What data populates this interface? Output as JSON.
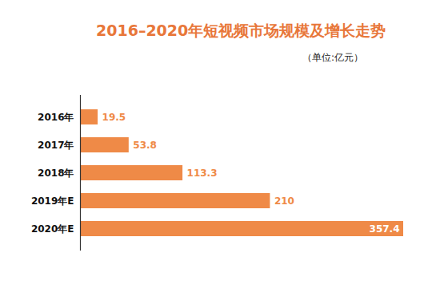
{
  "chart_data": {
    "type": "bar",
    "orientation": "horizontal",
    "title": "2016–2020年短视频市场规模及增长走势",
    "subtitle": "（单位:亿元）",
    "categories": [
      "2016年",
      "2017年",
      "2018年",
      "2019年E",
      "2020年E"
    ],
    "values": [
      19.5,
      53.8,
      113.3,
      210,
      357.4
    ],
    "color": "#ef8a47",
    "xlim": [
      0,
      357.4
    ],
    "data_labels": true,
    "tick_labels": "y",
    "grid": false
  }
}
